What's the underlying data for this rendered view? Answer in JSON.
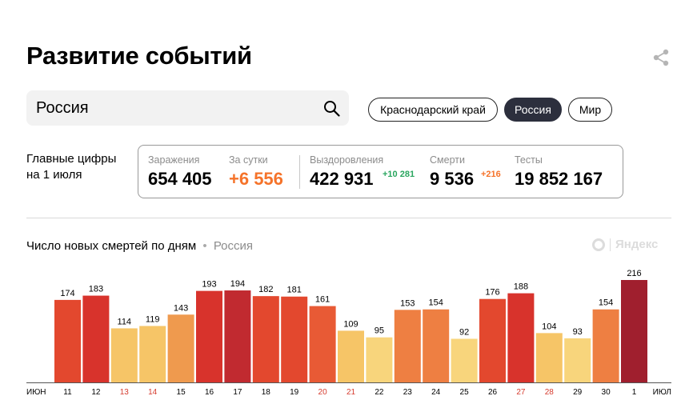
{
  "header": {
    "title": "Развитие событий"
  },
  "search": {
    "value": "Россия"
  },
  "regions": [
    {
      "label": "Краснодарский край",
      "active": false
    },
    {
      "label": "Россия",
      "active": true
    },
    {
      "label": "Мир",
      "active": false
    }
  ],
  "main_figures": {
    "label_line1": "Главные цифры",
    "label_line2": "на 1 июля",
    "infections": {
      "label": "Заражения",
      "value": "654 405"
    },
    "per_day": {
      "label": "За сутки",
      "value": "+6 556"
    },
    "recovered": {
      "label": "Выздоровления",
      "value": "422 931",
      "delta": "+10 281"
    },
    "deaths": {
      "label": "Смерти",
      "value": "9 536",
      "delta": "+216"
    },
    "tests": {
      "label": "Тесты",
      "value": "19 852 167"
    }
  },
  "chart_header": {
    "title": "Число новых смертей по дням",
    "separator": "•",
    "region": "Россия"
  },
  "watermark": {
    "text": "Яндекс"
  },
  "colors": {
    "accent_orange": "#f5732a",
    "accent_green": "#2aa65f",
    "chip_active": "#2c2f3d",
    "weekend_tick": "#d63c2f"
  },
  "chart_data": {
    "type": "bar",
    "title": "Число новых смертей по дням",
    "xlabel": "",
    "ylabel": "",
    "month_start_label": "ИЮН",
    "month_end_label": "ИЮЛ",
    "categories": [
      "11",
      "12",
      "13",
      "14",
      "15",
      "16",
      "17",
      "18",
      "19",
      "20",
      "21",
      "22",
      "23",
      "24",
      "25",
      "26",
      "27",
      "28",
      "29",
      "30",
      "1"
    ],
    "values": [
      174,
      183,
      114,
      119,
      143,
      193,
      194,
      182,
      181,
      161,
      109,
      95,
      153,
      154,
      92,
      176,
      188,
      104,
      93,
      154,
      216
    ],
    "weekend": [
      false,
      false,
      true,
      true,
      false,
      false,
      false,
      false,
      false,
      true,
      true,
      false,
      false,
      false,
      false,
      false,
      true,
      true,
      false,
      false,
      false
    ],
    "bar_colors": [
      "#e3482e",
      "#d8332c",
      "#f6c567",
      "#f6c567",
      "#ef9a4e",
      "#d8332c",
      "#c12a30",
      "#e3482e",
      "#e3482e",
      "#e85a35",
      "#f6c567",
      "#f8d57c",
      "#ee7f42",
      "#ee7f42",
      "#f8d57c",
      "#e3482e",
      "#d8332c",
      "#f6c567",
      "#f8d57c",
      "#ee7f42",
      "#a01f2e"
    ],
    "ylim": [
      0,
      216
    ],
    "grid": false,
    "legend": "none"
  }
}
